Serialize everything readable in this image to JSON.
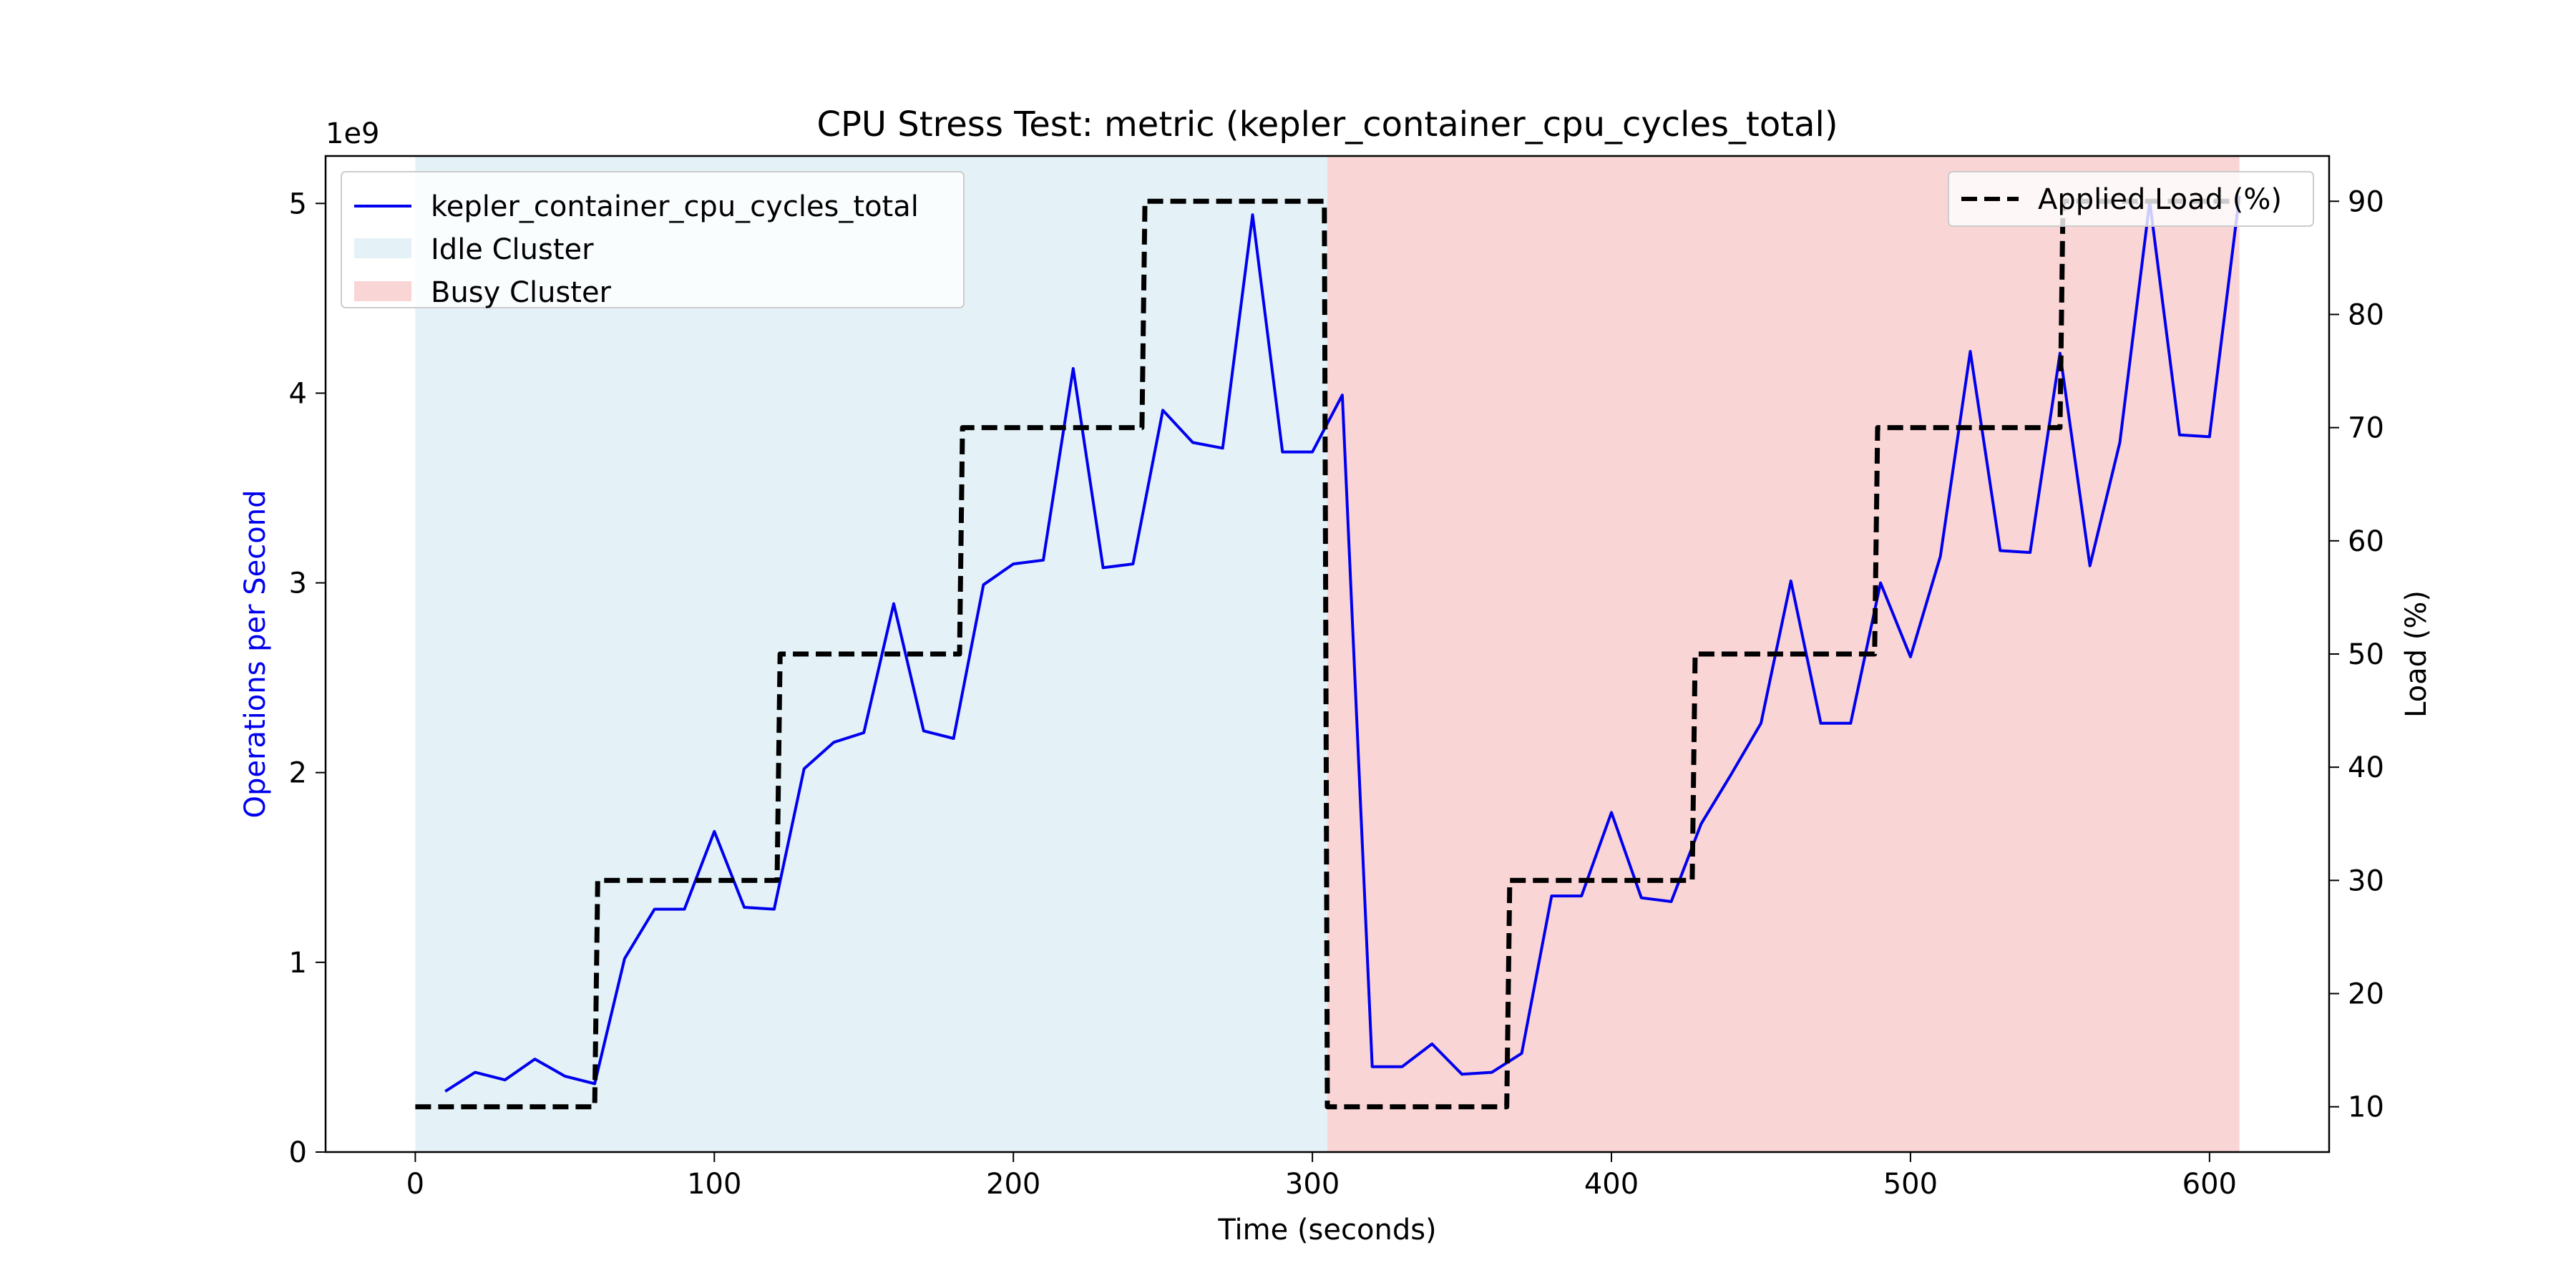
{
  "chart_data": {
    "type": "line",
    "title": "CPU Stress Test: metric (kepler_container_cpu_cycles_total)",
    "xlabel": "Time (seconds)",
    "ylabel": "Operations per Second",
    "y2label": "Load (%)",
    "y_offset_label": "1e9",
    "xlim": [
      -30,
      640
    ],
    "ylim": [
      0,
      5.25
    ],
    "y2lim": [
      6,
      94
    ],
    "x_ticks": [
      0,
      100,
      200,
      300,
      400,
      500,
      600
    ],
    "y_ticks": [
      0,
      1,
      2,
      3,
      4,
      5
    ],
    "y2_ticks": [
      10,
      20,
      30,
      40,
      50,
      60,
      70,
      80,
      90
    ],
    "grid": false,
    "legend_left_position": "upper-left",
    "legend_right_position": "upper-right",
    "regions": [
      {
        "name": "Idle Cluster",
        "x_start": 0,
        "x_end": 305,
        "color": "#add8e6"
      },
      {
        "name": "Busy Cluster",
        "x_start": 305,
        "x_end": 610,
        "color": "#f08080"
      }
    ],
    "series": [
      {
        "name": "kepler_container_cpu_cycles_total",
        "axis": "left",
        "color": "#0000ee",
        "x": [
          10,
          20,
          30,
          40,
          50,
          60,
          70,
          80,
          90,
          100,
          110,
          120,
          130,
          140,
          150,
          160,
          170,
          180,
          190,
          200,
          210,
          220,
          230,
          240,
          250,
          260,
          270,
          280,
          290,
          300,
          310,
          320,
          330,
          340,
          350,
          360,
          370,
          380,
          390,
          400,
          410,
          420,
          430,
          440,
          450,
          460,
          470,
          480,
          490,
          500,
          510,
          520,
          530,
          540,
          550,
          560,
          570,
          580,
          590,
          600,
          610
        ],
        "values": [
          0.32,
          0.42,
          0.38,
          0.49,
          0.4,
          0.36,
          1.02,
          1.28,
          1.28,
          1.69,
          1.29,
          1.28,
          2.02,
          2.16,
          2.21,
          2.89,
          2.22,
          2.18,
          2.99,
          3.1,
          3.12,
          4.13,
          3.08,
          3.1,
          3.91,
          3.74,
          3.71,
          4.94,
          3.69,
          3.69,
          3.99,
          0.45,
          0.45,
          0.57,
          0.41,
          0.42,
          0.52,
          1.35,
          1.35,
          1.79,
          1.34,
          1.32,
          1.73,
          1.99,
          2.26,
          3.01,
          2.26,
          2.26,
          3.0,
          2.61,
          3.14,
          4.22,
          3.17,
          3.16,
          4.21,
          3.09,
          3.74,
          5.01,
          3.78,
          3.77,
          5.04
        ]
      },
      {
        "name": "Applied Load (%)",
        "axis": "right",
        "color": "#000000",
        "style": "dashed",
        "x": [
          0,
          60,
          61,
          121,
          122,
          182,
          183,
          243,
          244,
          304,
          305,
          365,
          366,
          427,
          428,
          488,
          489,
          550,
          551,
          610
        ],
        "values": [
          10,
          10,
          30,
          30,
          50,
          50,
          70,
          70,
          90,
          90,
          10,
          10,
          30,
          30,
          50,
          50,
          70,
          70,
          90,
          90
        ]
      }
    ],
    "legend_left": [
      "kepler_container_cpu_cycles_total",
      "Idle Cluster",
      "Busy Cluster"
    ],
    "legend_right": [
      "Applied Load (%)"
    ]
  }
}
